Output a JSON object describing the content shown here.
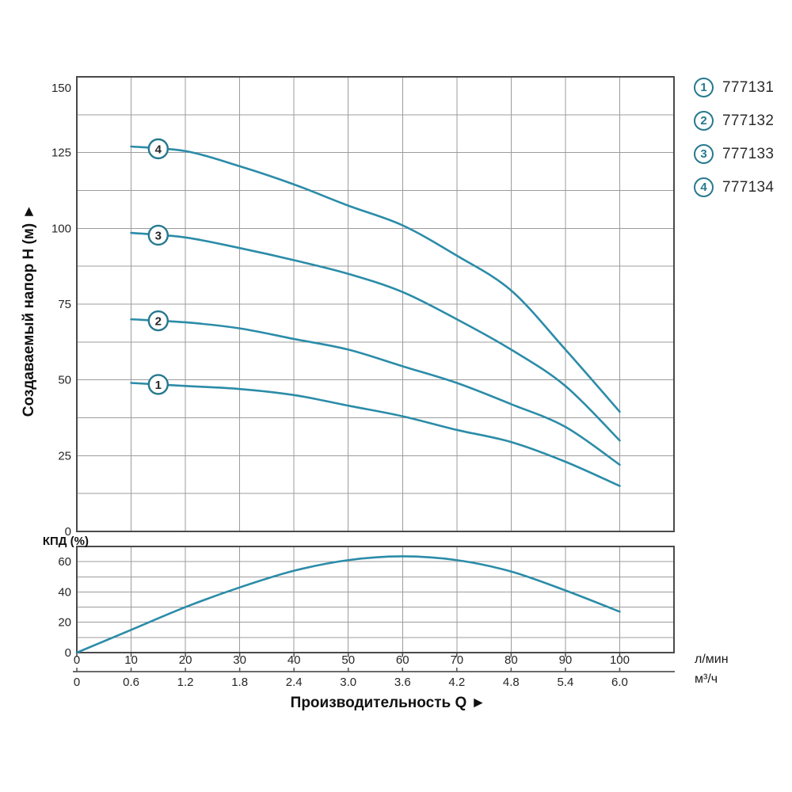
{
  "colors": {
    "curve": "#2b8ca8",
    "badge": "#26798f",
    "grid": "#9c9c9c",
    "frame": "#4a4a4a",
    "axis2": "#555555",
    "text": "#262626"
  },
  "legend": {
    "items": [
      {
        "marker": "1",
        "label": "777131"
      },
      {
        "marker": "2",
        "label": "777132"
      },
      {
        "marker": "3",
        "label": "777133"
      },
      {
        "marker": "4",
        "label": "777134"
      }
    ]
  },
  "chart_data": [
    {
      "type": "line",
      "name": "head-curves",
      "title": "",
      "ylabel": "Создаваемый напор H (м) ►",
      "xlabel": "Производительность Q ►",
      "ylim": [
        0,
        150
      ],
      "xlim": [
        0,
        110
      ],
      "yticks": [
        0,
        25,
        50,
        75,
        100,
        125,
        150
      ],
      "ygrid_step": 12.5,
      "xgrid_step": 10,
      "grid": "on",
      "legend_position": "right",
      "x": [
        10,
        20,
        30,
        40,
        50,
        60,
        70,
        80,
        90,
        100
      ],
      "series": [
        {
          "name": "777131",
          "marker": "1",
          "marker_q": 15,
          "values": [
            49,
            48,
            47,
            45,
            41.5,
            38,
            33.5,
            29.5,
            23,
            15
          ]
        },
        {
          "name": "777132",
          "marker": "2",
          "marker_q": 15,
          "values": [
            70,
            69,
            67,
            63.5,
            60,
            54.5,
            49,
            42,
            34.5,
            22
          ]
        },
        {
          "name": "777133",
          "marker": "3",
          "marker_q": 15,
          "values": [
            98.5,
            97,
            93.5,
            89.5,
            85,
            79,
            70,
            60,
            48,
            30
          ]
        },
        {
          "name": "777134",
          "marker": "4",
          "marker_q": 15,
          "values": [
            127,
            125.5,
            120.5,
            114.5,
            107.5,
            101,
            91,
            79.5,
            60,
            39.5
          ]
        }
      ],
      "x_axis": {
        "unit_primary": "л/мин",
        "unit_secondary": "м³/ч",
        "ticks_primary": [
          0,
          10,
          20,
          30,
          40,
          50,
          60,
          70,
          80,
          90,
          100
        ],
        "ticks_secondary": [
          "0",
          "0.6",
          "1.2",
          "1.8",
          "2.4",
          "3.0",
          "3.6",
          "4.2",
          "4.8",
          "5.4",
          "6.0"
        ]
      }
    },
    {
      "type": "line",
      "name": "efficiency-curve",
      "title": "КПД (%)",
      "ylim": [
        0,
        70
      ],
      "xlim": [
        0,
        110
      ],
      "yticks": [
        0,
        20,
        40,
        60
      ],
      "ygrid_step": 10,
      "xgrid_step": 10,
      "grid": "on",
      "x": [
        0,
        10,
        20,
        30,
        40,
        50,
        60,
        70,
        80,
        90,
        100
      ],
      "series": [
        {
          "name": "КПД",
          "values": [
            0,
            15,
            30,
            43,
            54,
            61,
            63.5,
            61,
            53.5,
            41,
            27
          ]
        }
      ]
    }
  ]
}
